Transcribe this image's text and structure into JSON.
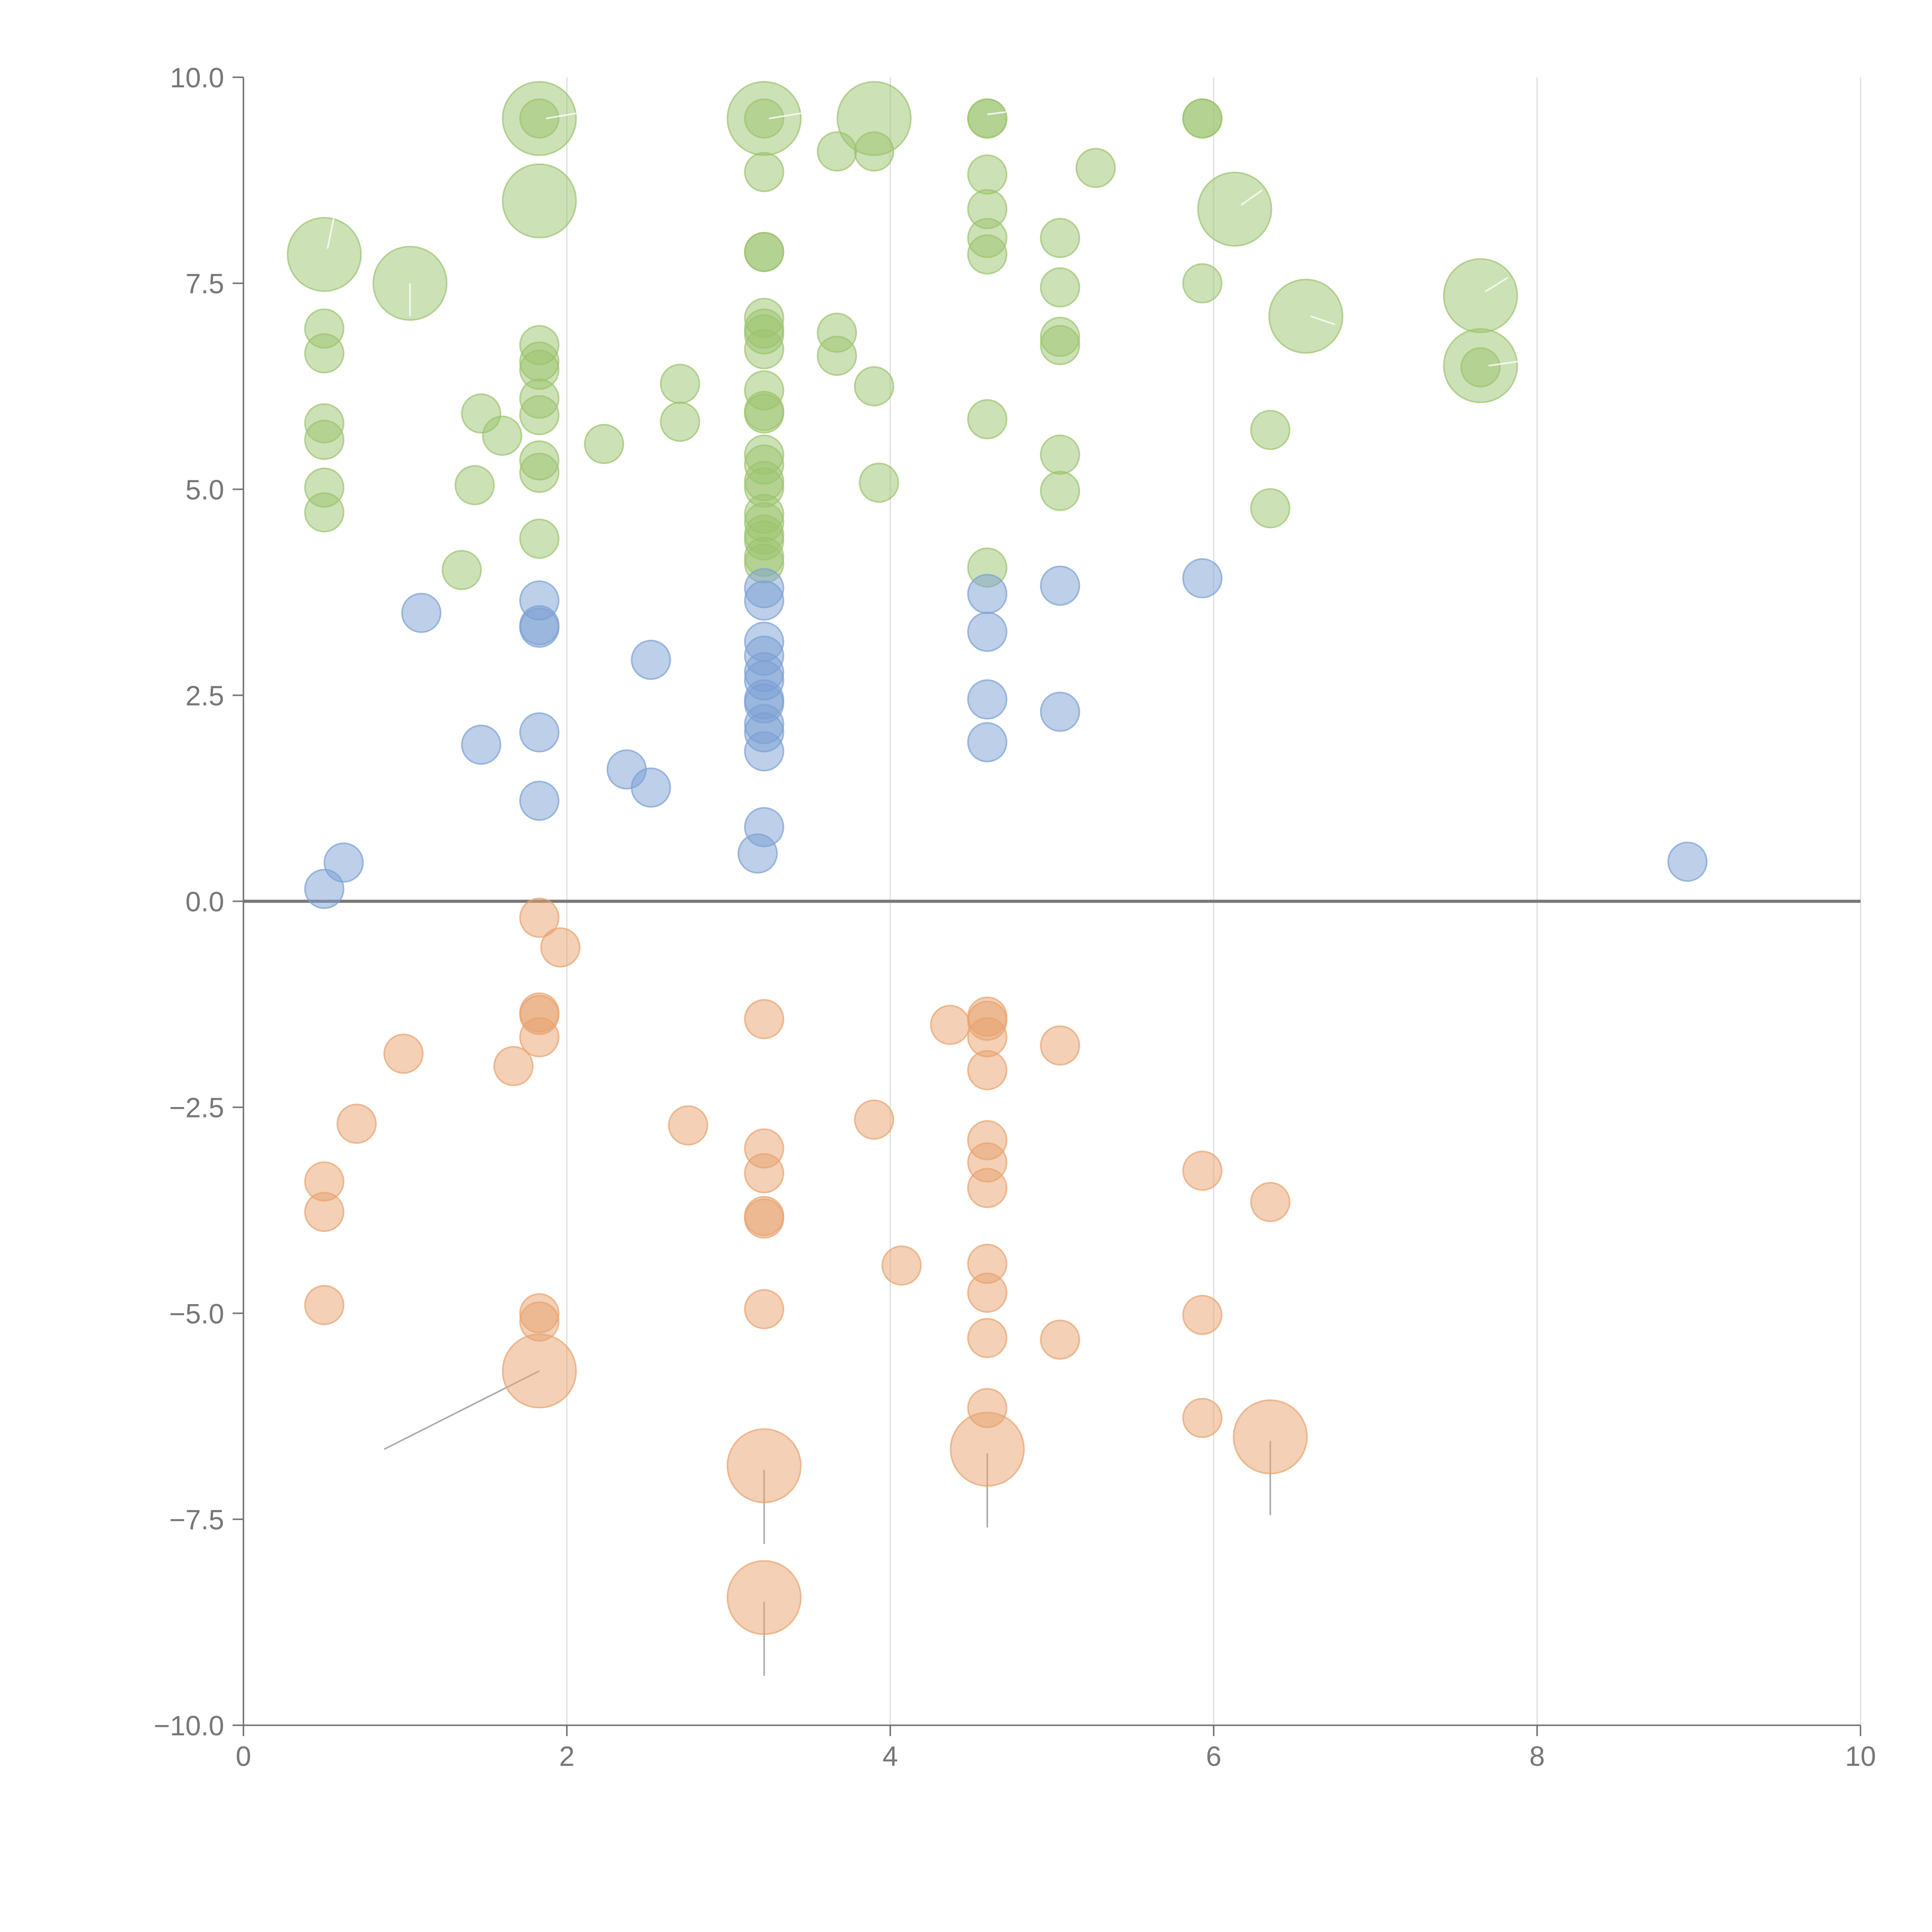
{
  "chart_data": {
    "type": "scatter",
    "title": "",
    "xlabel": "",
    "ylabel": "",
    "xlim": [
      0,
      10
    ],
    "ylim": [
      -10,
      10
    ],
    "grid": "vertical",
    "zero_line": true,
    "x_ticks": [
      "0",
      "2",
      "4",
      "6",
      "8",
      "10"
    ],
    "y_ticks": [
      "10.0",
      "7.5",
      "5.0",
      "2.5",
      "0.0",
      "−2.5",
      "−5.0",
      "−7.5",
      "−10.0"
    ],
    "x_tick_values": [
      0,
      2,
      4,
      6,
      8,
      10
    ],
    "y_tick_values": [
      10,
      7.5,
      5,
      2.5,
      0,
      -2.5,
      -5,
      -7.5,
      -10
    ],
    "series": [
      {
        "name": "green",
        "color": "#9bc36e",
        "points": [
          {
            "x": 0.5,
            "y": 7.85,
            "size": "large"
          },
          {
            "x": 1.03,
            "y": 7.5,
            "size": "large"
          },
          {
            "x": 1.83,
            "y": 9.5,
            "size": "large"
          },
          {
            "x": 1.83,
            "y": 8.5,
            "size": "large"
          },
          {
            "x": 3.22,
            "y": 9.5,
            "size": "large"
          },
          {
            "x": 3.9,
            "y": 9.5,
            "size": "large"
          },
          {
            "x": 6.13,
            "y": 8.4,
            "size": "large"
          },
          {
            "x": 6.57,
            "y": 7.1,
            "size": "large"
          },
          {
            "x": 7.65,
            "y": 7.35,
            "size": "large"
          },
          {
            "x": 7.65,
            "y": 6.5,
            "size": "large"
          },
          {
            "x": 0.5,
            "y": 6.95
          },
          {
            "x": 0.5,
            "y": 6.65
          },
          {
            "x": 0.5,
            "y": 5.8
          },
          {
            "x": 0.5,
            "y": 5.6
          },
          {
            "x": 0.5,
            "y": 5.02
          },
          {
            "x": 0.5,
            "y": 4.72
          },
          {
            "x": 1.35,
            "y": 4.02
          },
          {
            "x": 1.43,
            "y": 5.05
          },
          {
            "x": 1.47,
            "y": 5.92
          },
          {
            "x": 1.6,
            "y": 5.65
          },
          {
            "x": 1.83,
            "y": 9.5
          },
          {
            "x": 1.83,
            "y": 6.75
          },
          {
            "x": 1.83,
            "y": 6.55
          },
          {
            "x": 1.83,
            "y": 6.45
          },
          {
            "x": 1.83,
            "y": 6.1
          },
          {
            "x": 1.83,
            "y": 5.9
          },
          {
            "x": 1.83,
            "y": 5.35
          },
          {
            "x": 1.83,
            "y": 5.2
          },
          {
            "x": 1.83,
            "y": 4.4
          },
          {
            "x": 2.23,
            "y": 5.55
          },
          {
            "x": 2.7,
            "y": 6.28
          },
          {
            "x": 2.7,
            "y": 5.82
          },
          {
            "x": 3.22,
            "y": 9.5
          },
          {
            "x": 3.22,
            "y": 8.85
          },
          {
            "x": 3.22,
            "y": 7.88
          },
          {
            "x": 3.22,
            "y": 7.88
          },
          {
            "x": 3.22,
            "y": 7.08
          },
          {
            "x": 3.22,
            "y": 6.95
          },
          {
            "x": 3.22,
            "y": 6.88
          },
          {
            "x": 3.22,
            "y": 6.7
          },
          {
            "x": 3.22,
            "y": 6.2
          },
          {
            "x": 3.22,
            "y": 5.95
          },
          {
            "x": 3.22,
            "y": 5.92
          },
          {
            "x": 3.22,
            "y": 5.42
          },
          {
            "x": 3.22,
            "y": 5.3
          },
          {
            "x": 3.22,
            "y": 5.1
          },
          {
            "x": 3.22,
            "y": 5.02
          },
          {
            "x": 3.22,
            "y": 4.7
          },
          {
            "x": 3.22,
            "y": 4.6
          },
          {
            "x": 3.22,
            "y": 4.45
          },
          {
            "x": 3.22,
            "y": 4.38
          },
          {
            "x": 3.22,
            "y": 4.18
          },
          {
            "x": 3.22,
            "y": 4.1
          },
          {
            "x": 3.67,
            "y": 9.1
          },
          {
            "x": 3.67,
            "y": 6.9
          },
          {
            "x": 3.67,
            "y": 6.62
          },
          {
            "x": 3.9,
            "y": 9.1
          },
          {
            "x": 3.9,
            "y": 6.25
          },
          {
            "x": 3.93,
            "y": 5.08
          },
          {
            "x": 4.6,
            "y": 9.5
          },
          {
            "x": 4.6,
            "y": 9.5
          },
          {
            "x": 4.6,
            "y": 8.82
          },
          {
            "x": 4.6,
            "y": 8.4
          },
          {
            "x": 4.6,
            "y": 8.05
          },
          {
            "x": 4.6,
            "y": 7.85
          },
          {
            "x": 4.6,
            "y": 5.85
          },
          {
            "x": 4.6,
            "y": 4.05
          },
          {
            "x": 5.05,
            "y": 8.05
          },
          {
            "x": 5.05,
            "y": 7.45
          },
          {
            "x": 5.05,
            "y": 6.85
          },
          {
            "x": 5.05,
            "y": 6.75
          },
          {
            "x": 5.05,
            "y": 5.42
          },
          {
            "x": 5.05,
            "y": 4.98
          },
          {
            "x": 5.27,
            "y": 8.9
          },
          {
            "x": 5.93,
            "y": 9.5
          },
          {
            "x": 5.93,
            "y": 9.5
          },
          {
            "x": 5.93,
            "y": 7.5
          },
          {
            "x": 6.35,
            "y": 5.72
          },
          {
            "x": 6.35,
            "y": 4.77
          },
          {
            "x": 7.65,
            "y": 6.48
          }
        ]
      },
      {
        "name": "blue",
        "color": "#7b9fd3",
        "points": [
          {
            "x": 0.5,
            "y": 0.15
          },
          {
            "x": 0.62,
            "y": 0.47
          },
          {
            "x": 1.1,
            "y": 3.5
          },
          {
            "x": 1.47,
            "y": 1.9
          },
          {
            "x": 1.83,
            "y": 3.65
          },
          {
            "x": 1.83,
            "y": 3.35
          },
          {
            "x": 1.83,
            "y": 3.32
          },
          {
            "x": 1.83,
            "y": 2.05
          },
          {
            "x": 1.83,
            "y": 1.22
          },
          {
            "x": 2.37,
            "y": 1.6
          },
          {
            "x": 2.52,
            "y": 2.93
          },
          {
            "x": 2.52,
            "y": 1.38
          },
          {
            "x": 3.18,
            "y": 0.58
          },
          {
            "x": 3.22,
            "y": 3.8
          },
          {
            "x": 3.22,
            "y": 3.65
          },
          {
            "x": 3.22,
            "y": 3.15
          },
          {
            "x": 3.22,
            "y": 2.98
          },
          {
            "x": 3.22,
            "y": 2.78
          },
          {
            "x": 3.22,
            "y": 2.68
          },
          {
            "x": 3.22,
            "y": 2.45
          },
          {
            "x": 3.22,
            "y": 2.4
          },
          {
            "x": 3.22,
            "y": 2.15
          },
          {
            "x": 3.22,
            "y": 2.05
          },
          {
            "x": 3.22,
            "y": 1.82
          },
          {
            "x": 3.22,
            "y": 0.9
          },
          {
            "x": 4.6,
            "y": 3.73
          },
          {
            "x": 4.6,
            "y": 3.27
          },
          {
            "x": 4.6,
            "y": 2.45
          },
          {
            "x": 4.6,
            "y": 1.93
          },
          {
            "x": 5.05,
            "y": 3.83
          },
          {
            "x": 5.05,
            "y": 2.3
          },
          {
            "x": 5.93,
            "y": 3.92
          },
          {
            "x": 8.93,
            "y": 0.48
          }
        ]
      },
      {
        "name": "orange",
        "color": "#e8a26e",
        "points": [
          {
            "x": 1.83,
            "y": -5.7,
            "size": "large"
          },
          {
            "x": 3.22,
            "y": -6.85,
            "size": "large"
          },
          {
            "x": 3.22,
            "y": -8.45,
            "size": "large"
          },
          {
            "x": 4.6,
            "y": -6.65,
            "size": "large"
          },
          {
            "x": 6.35,
            "y": -6.5,
            "size": "large"
          },
          {
            "x": 0.5,
            "y": -3.4
          },
          {
            "x": 0.5,
            "y": -3.77
          },
          {
            "x": 0.5,
            "y": -4.9
          },
          {
            "x": 0.7,
            "y": -2.7
          },
          {
            "x": 0.99,
            "y": -1.85
          },
          {
            "x": 1.67,
            "y": -2.0
          },
          {
            "x": 1.83,
            "y": -0.2
          },
          {
            "x": 1.83,
            "y": -1.38
          },
          {
            "x": 1.83,
            "y": -1.35
          },
          {
            "x": 1.83,
            "y": -1.65
          },
          {
            "x": 1.83,
            "y": -5.0
          },
          {
            "x": 1.83,
            "y": -5.1
          },
          {
            "x": 1.96,
            "y": -0.56
          },
          {
            "x": 2.75,
            "y": -2.72
          },
          {
            "x": 3.22,
            "y": -1.43
          },
          {
            "x": 3.22,
            "y": -3.0
          },
          {
            "x": 3.22,
            "y": -3.3
          },
          {
            "x": 3.22,
            "y": -3.82
          },
          {
            "x": 3.22,
            "y": -3.85
          },
          {
            "x": 3.22,
            "y": -4.95
          },
          {
            "x": 3.9,
            "y": -2.65
          },
          {
            "x": 4.07,
            "y": -4.42
          },
          {
            "x": 4.37,
            "y": -1.5
          },
          {
            "x": 4.6,
            "y": -1.4
          },
          {
            "x": 4.6,
            "y": -1.45
          },
          {
            "x": 4.6,
            "y": -1.65
          },
          {
            "x": 4.6,
            "y": -2.05
          },
          {
            "x": 4.6,
            "y": -2.9
          },
          {
            "x": 4.6,
            "y": -3.17
          },
          {
            "x": 4.6,
            "y": -3.48
          },
          {
            "x": 4.6,
            "y": -4.4
          },
          {
            "x": 4.6,
            "y": -4.75
          },
          {
            "x": 4.6,
            "y": -5.3
          },
          {
            "x": 4.6,
            "y": -6.15
          },
          {
            "x": 5.05,
            "y": -1.75
          },
          {
            "x": 5.05,
            "y": -5.32
          },
          {
            "x": 5.93,
            "y": -3.27
          },
          {
            "x": 5.93,
            "y": -5.02
          },
          {
            "x": 5.93,
            "y": -6.27
          },
          {
            "x": 6.35,
            "y": -3.65
          }
        ]
      }
    ],
    "leaders": [
      {
        "x1": 1.83,
        "y1": -5.7,
        "x2": 0.87,
        "y2": -6.65,
        "tone": "gray"
      },
      {
        "x1": 3.22,
        "y1": -6.9,
        "x2": 3.22,
        "y2": -7.8,
        "tone": "gray"
      },
      {
        "x1": 3.22,
        "y1": -8.5,
        "x2": 3.22,
        "y2": -9.4,
        "tone": "gray"
      },
      {
        "x1": 4.6,
        "y1": -6.7,
        "x2": 4.6,
        "y2": -7.6,
        "tone": "gray"
      },
      {
        "x1": 6.35,
        "y1": -6.55,
        "x2": 6.35,
        "y2": -7.45,
        "tone": "gray"
      },
      {
        "x1": 0.52,
        "y1": 7.92,
        "x2": 0.57,
        "y2": 8.4,
        "tone": "light"
      },
      {
        "x1": 1.03,
        "y1": 7.5,
        "x2": 1.03,
        "y2": 7.1,
        "tone": "light"
      },
      {
        "x1": 1.87,
        "y1": 9.5,
        "x2": 2.08,
        "y2": 9.57,
        "tone": "light"
      },
      {
        "x1": 3.25,
        "y1": 9.5,
        "x2": 3.47,
        "y2": 9.57,
        "tone": "light"
      },
      {
        "x1": 4.6,
        "y1": 9.55,
        "x2": 4.8,
        "y2": 9.6,
        "tone": "light"
      },
      {
        "x1": 6.17,
        "y1": 8.45,
        "x2": 6.3,
        "y2": 8.63,
        "tone": "light"
      },
      {
        "x1": 6.6,
        "y1": 7.1,
        "x2": 6.75,
        "y2": 7.0,
        "tone": "light"
      },
      {
        "x1": 7.68,
        "y1": 7.4,
        "x2": 7.82,
        "y2": 7.57,
        "tone": "light"
      },
      {
        "x1": 7.7,
        "y1": 6.5,
        "x2": 7.88,
        "y2": 6.55,
        "tone": "light"
      }
    ]
  }
}
